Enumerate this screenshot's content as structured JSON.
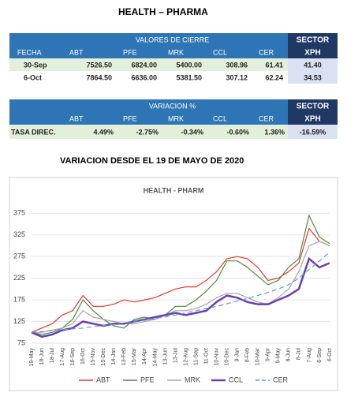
{
  "header": {
    "title": "HEALTH – PHARMA"
  },
  "table1": {
    "header": [
      "VALORES DE CIERRE",
      "SECTOR"
    ],
    "columns": [
      "FECHA",
      "ABT",
      "PFE",
      "MRK",
      "CCL",
      "CER",
      "XPH"
    ],
    "rows": [
      [
        "30-Sep",
        "7526.50",
        "6824.00",
        "5400.00",
        "308.96",
        "61.41",
        "41.40"
      ],
      [
        "6-Oct",
        "7864.50",
        "6636.00",
        "5381.50",
        "307.12",
        "62.24",
        "34.53"
      ]
    ]
  },
  "table2": {
    "header": [
      "VARIACION %",
      "SECTOR"
    ],
    "columns": [
      "ABT",
      "PFE",
      "MRK",
      "CCL",
      "CER",
      "XPH"
    ],
    "rows": [
      [
        "TASA DIREC.",
        "4.49%",
        "-2.75%",
        "-0.34%",
        "-0.60%",
        "1.36%",
        "-16.59%"
      ]
    ]
  },
  "subtitle": "VARIACION DESDE EL 19 DE MAYO DE 2020",
  "chart_data": {
    "type": "line",
    "title": "HEALTH - PHARM",
    "categories": [
      "19-May",
      "18-Jun",
      "18-Jul",
      "17-Aug",
      "16-Sep",
      "16-Oct",
      "15-Nov",
      "15-Dec",
      "14-Jan",
      "13-Feb",
      "15-Mar",
      "14-Apr",
      "14-May",
      "13-Jun",
      "13-Jul",
      "12-Aug",
      "11-Sep",
      "11-Oct",
      "10-Nov",
      "10-Dec",
      "9-Jan",
      "8-Feb",
      "10-Mar",
      "9-Apr",
      "9-May",
      "8-Jun",
      "8-Jul",
      "7-Aug",
      "6-Sep",
      "6-Oct"
    ],
    "series": [
      {
        "name": "ABT",
        "color": "#e8362a",
        "values": [
          100,
          110,
          120,
          140,
          150,
          185,
          160,
          160,
          165,
          175,
          170,
          175,
          180,
          190,
          200,
          205,
          205,
          220,
          240,
          270,
          275,
          270,
          250,
          220,
          225,
          240,
          260,
          340,
          310,
          300
        ]
      },
      {
        "name": "PFE",
        "color": "#4e8a3a",
        "values": [
          100,
          95,
          100,
          110,
          130,
          175,
          150,
          130,
          115,
          110,
          130,
          135,
          130,
          140,
          160,
          160,
          175,
          195,
          220,
          265,
          265,
          250,
          230,
          210,
          220,
          250,
          270,
          370,
          320,
          305
        ]
      },
      {
        "name": "MRK",
        "color": "#a5a5a5",
        "values": [
          100,
          100,
          105,
          110,
          120,
          150,
          135,
          130,
          125,
          120,
          120,
          125,
          130,
          140,
          150,
          150,
          155,
          165,
          180,
          190,
          190,
          180,
          170,
          165,
          180,
          200,
          240,
          300,
          310,
          300
        ]
      },
      {
        "name": "CCL",
        "color": "#6a3fb5",
        "values": [
          100,
          90,
          95,
          105,
          110,
          125,
          120,
          115,
          120,
          120,
          125,
          130,
          135,
          140,
          145,
          140,
          145,
          150,
          170,
          185,
          180,
          170,
          165,
          165,
          175,
          185,
          200,
          270,
          250,
          260
        ]
      },
      {
        "name": "CER",
        "color": "#5b9bd5",
        "dashed": true,
        "values": [
          100,
          102,
          104,
          106,
          108,
          110,
          113,
          116,
          119,
          122,
          125,
          128,
          132,
          136,
          140,
          145,
          150,
          155,
          160,
          166,
          172,
          178,
          185,
          192,
          200,
          210,
          225,
          245,
          265,
          285
        ]
      }
    ],
    "ylim": [
      75,
      390
    ],
    "yticks": [
      75,
      125,
      175,
      225,
      275,
      325,
      375
    ],
    "grid": true,
    "legend": "bottom"
  }
}
